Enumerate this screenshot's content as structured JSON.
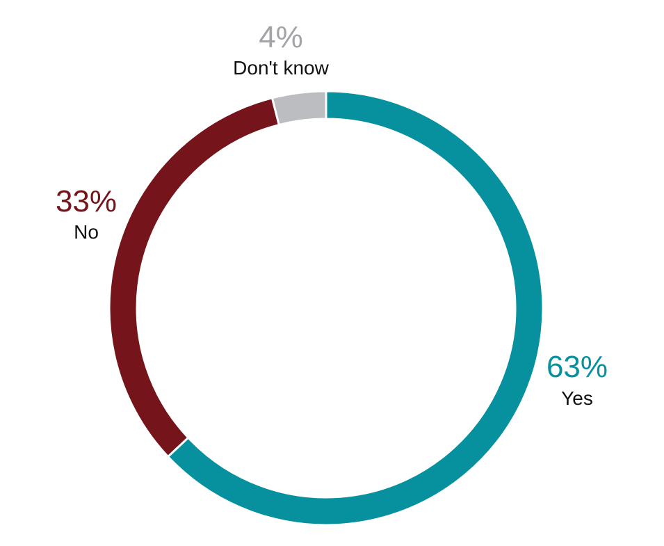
{
  "chart_data": {
    "type": "pie",
    "style": "donut",
    "slices": [
      {
        "label": "Yes",
        "value": 63,
        "display": "63%",
        "color": "#07909e"
      },
      {
        "label": "No",
        "value": 33,
        "display": "33%",
        "color": "#76141b"
      },
      {
        "label": "Don't know",
        "value": 4,
        "display": "4%",
        "color": "#bcbdc0"
      }
    ],
    "title": "",
    "legend": "none"
  }
}
